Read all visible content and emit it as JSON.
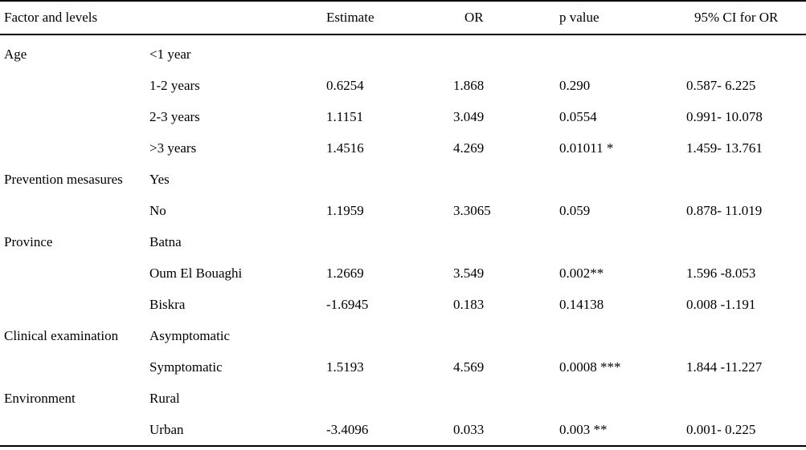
{
  "table": {
    "headers": {
      "factor": "Factor and levels",
      "estimate": "Estimate",
      "or": "OR",
      "p": "p value",
      "ci": "95% CI for OR"
    },
    "rows": [
      {
        "factor": "Age",
        "level": "<1 year",
        "estimate": "",
        "or": "",
        "p": "",
        "ci": ""
      },
      {
        "factor": "",
        "level": "1-2 years",
        "estimate": "0.6254",
        "or": "1.868",
        "p": "0.290",
        "ci": "0.587- 6.225"
      },
      {
        "factor": "",
        "level": "2-3 years",
        "estimate": "1.1151",
        "or": "3.049",
        "p": "0.0554",
        "ci": "0.991- 10.078"
      },
      {
        "factor": "",
        "level": ">3 years",
        "estimate": "1.4516",
        "or": "4.269",
        "p": "0.01011 *",
        "ci": "1.459- 13.761"
      },
      {
        "factor": "Prevention mesasures",
        "level": "Yes",
        "estimate": "",
        "or": "",
        "p": "",
        "ci": ""
      },
      {
        "factor": "",
        "level": "No",
        "estimate": "1.1959",
        "or": "3.3065",
        "p": "0.059",
        "ci": "0.878- 11.019"
      },
      {
        "factor": "Province",
        "level": "Batna",
        "estimate": "",
        "or": "",
        "p": "",
        "ci": ""
      },
      {
        "factor": "",
        "level": "Oum El Bouaghi",
        "estimate": "1.2669",
        "or": "3.549",
        "p": "0.002**",
        "ci": "1.596 -8.053"
      },
      {
        "factor": "",
        "level": "Biskra",
        "estimate": "-1.6945",
        "or": "0.183",
        "p": "0.14138",
        "ci": "0.008 -1.191"
      },
      {
        "factor": "Clinical examination",
        "level": "Asymptomatic",
        "estimate": "",
        "or": "",
        "p": "",
        "ci": ""
      },
      {
        "factor": "",
        "level": "Symptomatic",
        "estimate": "1.5193",
        "or": "4.569",
        "p": "0.0008 ***",
        "ci": "1.844 -11.227"
      },
      {
        "factor": "Environment",
        "level": "Rural",
        "estimate": "",
        "or": "",
        "p": "",
        "ci": ""
      },
      {
        "factor": "",
        "level": "Urban",
        "estimate": "-3.4096",
        "or": "0.033",
        "p": "0.003 **",
        "ci": "0.001- 0.225"
      }
    ]
  }
}
